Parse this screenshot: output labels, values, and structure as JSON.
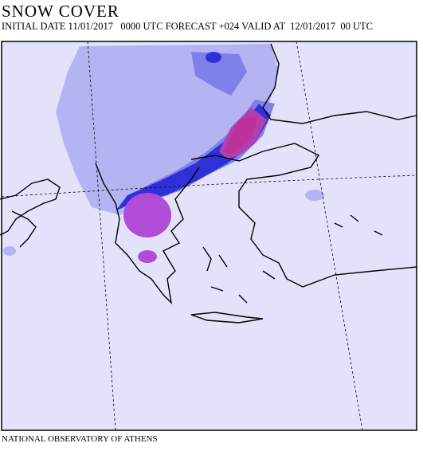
{
  "header": {
    "title": "SNOW COVER",
    "initial": "INITIAL DATE 11/01/2017",
    "forecast": "0000 UTC FORECAST +024 VALID AT",
    "valid_date": "12/01/2017",
    "valid_hour": "00 UTC"
  },
  "footer": {
    "credit": "NATIONAL OBSERVATORY OF ATHENS"
  }
}
